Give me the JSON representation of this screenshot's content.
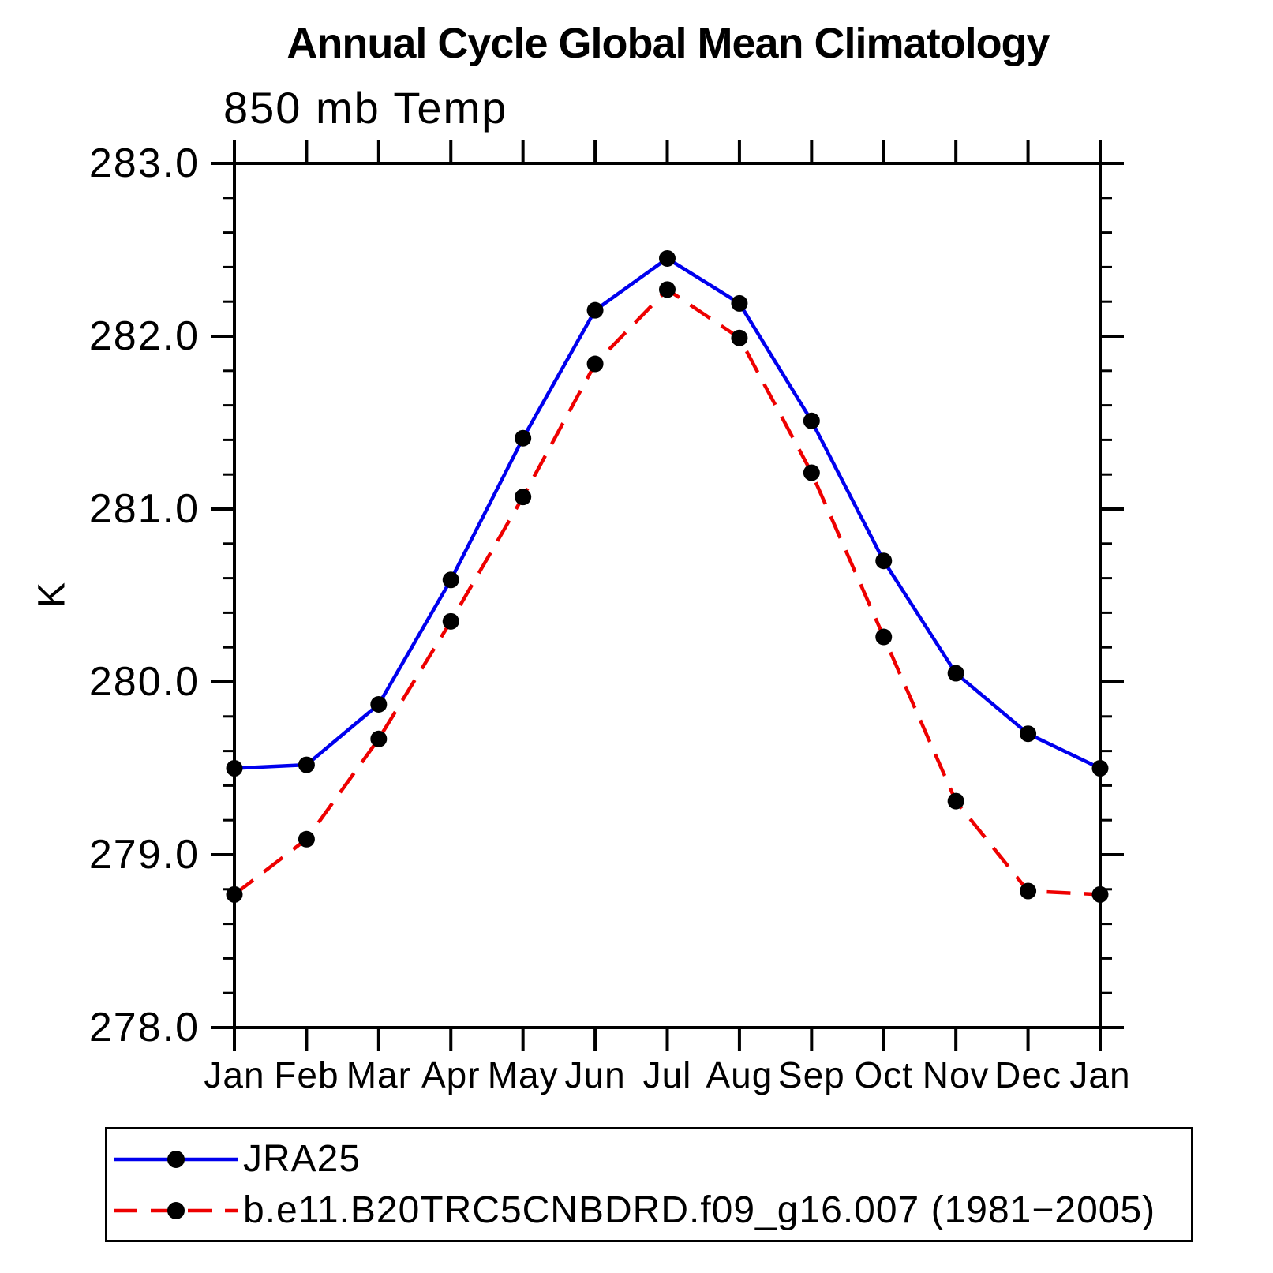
{
  "header": {
    "title": "Annual Cycle Global Mean Climatology"
  },
  "chart_data": {
    "type": "line",
    "title": "Annual Cycle Global Mean Climatology",
    "subtitle": "850 mb Temp",
    "xlabel": "",
    "ylabel": "K",
    "categories": [
      "Jan",
      "Feb",
      "Mar",
      "Apr",
      "May",
      "Jun",
      "Jul",
      "Aug",
      "Sep",
      "Oct",
      "Nov",
      "Dec",
      "Jan"
    ],
    "series": [
      {
        "name": "JRA25",
        "color": "#0000ee",
        "style": "solid",
        "marker": "circle",
        "marker_color": "#000000",
        "values": [
          279.5,
          279.52,
          279.87,
          280.59,
          281.41,
          282.15,
          282.45,
          282.19,
          281.51,
          280.7,
          280.05,
          279.7,
          279.5
        ]
      },
      {
        "name": "b.e11.B20TRC5CNBDRD.f09_g16.007 (1981−2005)",
        "color": "#ee0000",
        "style": "dashed",
        "marker": "circle",
        "marker_color": "#000000",
        "values": [
          278.77,
          279.09,
          279.67,
          280.35,
          281.07,
          281.84,
          282.27,
          281.99,
          281.21,
          280.26,
          279.31,
          278.79,
          278.77
        ]
      }
    ],
    "ylim": [
      278.0,
      283.0
    ],
    "ytick_interval": 1.0,
    "yminor_interval": 0.2,
    "ytick_label_format": "one_decimal",
    "grid": false,
    "legend_position": "bottom-left",
    "axis_color": "#000000",
    "text_color": "#000000"
  }
}
